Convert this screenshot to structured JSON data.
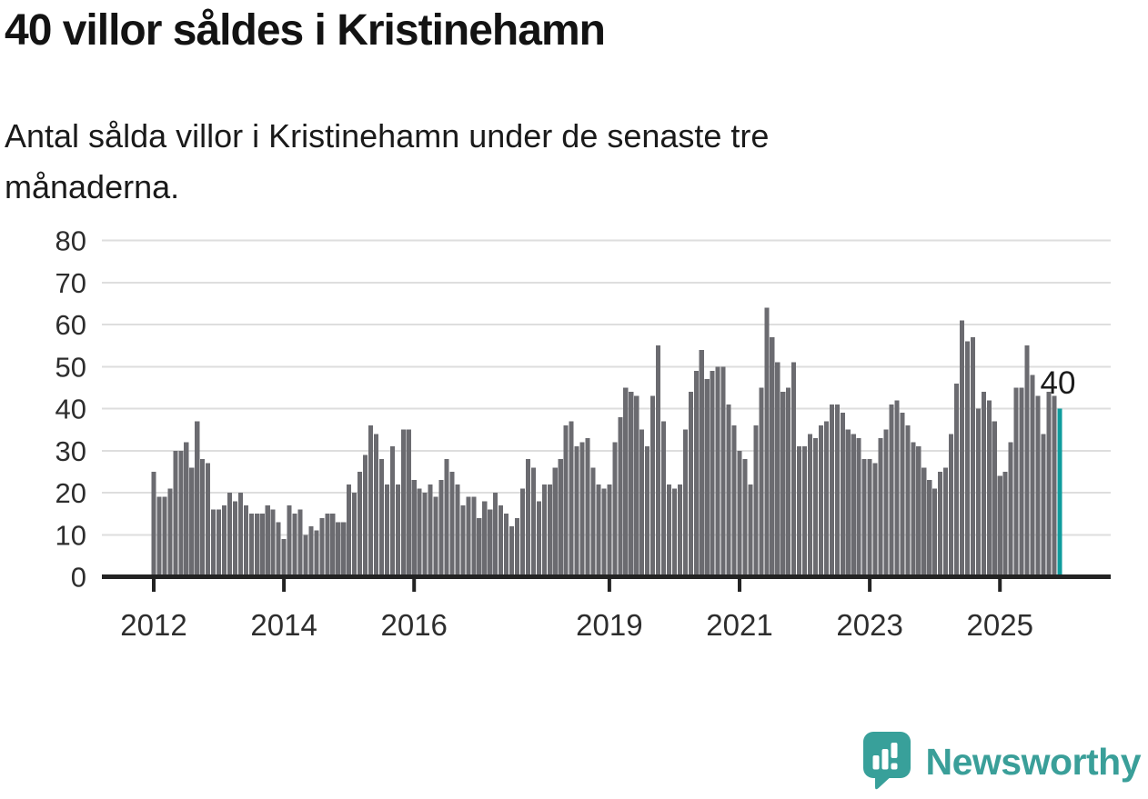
{
  "title": "40 villor såldes i Kristinehamn",
  "subtitle_lines": [
    "Antal sålda villor i Kristinehamn under de senaste tre",
    "månaderna."
  ],
  "branding": {
    "wordmark": "Newsworthy",
    "logo_icon": "speech-bubble-bar-chart-icon",
    "logo_color": "#38a09a",
    "wordmark_color": "#3a9f99"
  },
  "chart_data": {
    "type": "bar",
    "title": "40 villor såldes i Kristinehamn",
    "subtitle": "Antal sålda villor i Kristinehamn under de senaste tre månaderna.",
    "ylabel": "",
    "xlabel": "",
    "ylim": [
      0,
      80
    ],
    "grid": true,
    "yticks": [
      0,
      10,
      20,
      30,
      40,
      50,
      60,
      70,
      80
    ],
    "xticks": [
      {
        "label": "2012",
        "month_index": 0
      },
      {
        "label": "2014",
        "month_index": 24
      },
      {
        "label": "2016",
        "month_index": 48
      },
      {
        "label": "2019",
        "month_index": 84
      },
      {
        "label": "2021",
        "month_index": 108
      },
      {
        "label": "2023",
        "month_index": 132
      },
      {
        "label": "2025",
        "month_index": 156
      }
    ],
    "x_start": "2012-01",
    "x_end": "2025-12",
    "values": [
      25,
      19,
      19,
      21,
      30,
      30,
      32,
      26,
      37,
      28,
      27,
      16,
      16,
      17,
      20,
      18,
      20,
      17,
      15,
      15,
      15,
      17,
      16,
      13,
      9,
      17,
      15,
      16,
      10,
      12,
      11,
      14,
      15,
      15,
      13,
      13,
      22,
      20,
      25,
      29,
      36,
      34,
      28,
      22,
      31,
      22,
      35,
      35,
      23,
      21,
      20,
      22,
      19,
      23,
      28,
      25,
      22,
      17,
      19,
      19,
      14,
      18,
      16,
      20,
      17,
      15,
      12,
      14,
      21,
      28,
      26,
      18,
      22,
      22,
      26,
      28,
      36,
      37,
      31,
      32,
      33,
      26,
      22,
      21,
      22,
      32,
      38,
      45,
      44,
      43,
      35,
      31,
      43,
      55,
      37,
      22,
      21,
      22,
      35,
      44,
      49,
      54,
      47,
      49,
      50,
      50,
      41,
      36,
      30,
      28,
      22,
      36,
      45,
      64,
      57,
      51,
      44,
      45,
      51,
      31,
      31,
      34,
      33,
      36,
      37,
      41,
      41,
      39,
      35,
      34,
      33,
      28,
      28,
      27,
      33,
      35,
      41,
      42,
      39,
      36,
      32,
      31,
      26,
      23,
      21,
      25,
      26,
      34,
      46,
      61,
      56,
      57,
      40,
      44,
      42,
      37,
      24,
      25,
      32,
      45,
      45,
      55,
      48,
      43,
      34,
      44,
      43,
      40
    ],
    "highlight_index": 167,
    "highlight_label": "40",
    "highlight_color": "#0f9c9d",
    "bar_color": "#6b6b70",
    "grid_color": "#dedede",
    "axis_color": "#232323",
    "tick_label_color": "#2d2d2d",
    "annotation_color": "#1b1b1b"
  }
}
